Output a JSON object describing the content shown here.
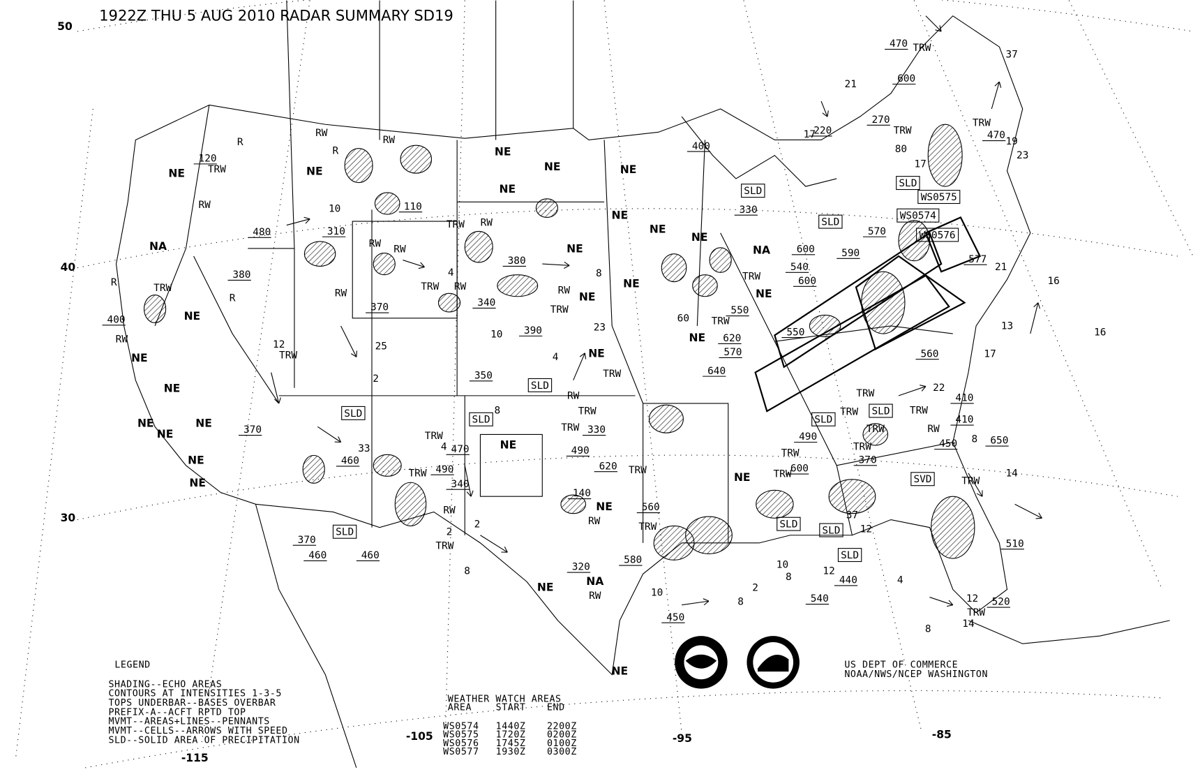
{
  "title": "1922Z THU  5 AUG 2010 RADAR SUMMARY SD19",
  "latitude_labels": [
    "50",
    "40",
    "30"
  ],
  "longitude_labels": [
    "-115",
    "-105",
    "-95",
    "-85"
  ],
  "legend": {
    "heading": "LEGEND",
    "lines": [
      "SHADING--ECHO AREAS",
      "CONTOURS AT INTENSITIES 1-3-5",
      "TOPS UNDERBAR--BASES OVERBAR",
      "PREFIX-A--ACFT RPTD TOP",
      "MVMT--AREAS+LINES--PENNANTS",
      "MVMT--CELLS--ARROWS WITH SPEED",
      "SLD--SOLID AREA OF PRECIPITATION"
    ]
  },
  "watch_areas": {
    "heading": "WEATHER WATCH AREAS",
    "columns": [
      "AREA",
      "START",
      "END"
    ],
    "rows": [
      [
        "WS0574",
        "1440Z",
        "2200Z"
      ],
      [
        "WS0575",
        "1720Z",
        "0200Z"
      ],
      [
        "WS0576",
        "1745Z",
        "0100Z"
      ],
      [
        "WS0577",
        "1930Z",
        "0300Z"
      ]
    ]
  },
  "credit": {
    "line1": "US DEPT OF COMMERCE",
    "line2": "NOAA/NWS/NCEP WASHINGTON"
  },
  "logos": [
    "NOAA",
    "NATIONAL WEATHER SERVICE"
  ],
  "map_labels": [
    "NE",
    "120",
    "TRW",
    "RW",
    "R",
    "NA",
    "480",
    "380",
    "R",
    "TRW",
    "R",
    "400",
    "RW",
    "NE",
    "NE",
    "12",
    "TRW",
    "NE",
    "NE",
    "NE",
    "NE",
    "370",
    "NE",
    "NE",
    "370",
    "460",
    "SLD",
    "SLD",
    "33",
    "460",
    "25",
    "2",
    "370",
    "RW",
    "RW",
    "310",
    "10",
    "RW",
    "R",
    "RW",
    "110",
    "NE",
    "RW",
    "NE",
    "NE",
    "NE",
    "TRW",
    "RW",
    "4",
    "TRW",
    "RW",
    "340",
    "380",
    "RW",
    "TRW",
    "NE",
    "NE",
    "8",
    "NE",
    "NE",
    "NE",
    "NE",
    "10",
    "390",
    "4",
    "NE",
    "23",
    "350",
    "SLD",
    "SLD",
    "8",
    "4",
    "470",
    "TRW",
    "TRW",
    "490",
    "340",
    "NE",
    "RW",
    "2",
    "2",
    "TRW",
    "8",
    "460",
    "490",
    "TRW",
    "330",
    "TRW",
    "TRW",
    "RW",
    "620",
    "TRW",
    "140",
    "NE",
    "RW",
    "560",
    "TRW",
    "580",
    "320",
    "NA",
    "NE",
    "RW",
    "10",
    "450",
    "NE",
    "2",
    "8",
    "10",
    "8",
    "540",
    "440",
    "SLD",
    "12",
    "SLD",
    "37",
    "12",
    "SLD",
    "4",
    "8",
    "14",
    "12",
    "520",
    "TRW",
    "510",
    "14",
    "TRW",
    "8",
    "650",
    "450",
    "SVD",
    "410",
    "410",
    "22",
    "17",
    "13",
    "16",
    "21",
    "577",
    "WS0576",
    "470",
    "TRW",
    "37",
    "21",
    "600",
    "270",
    "220",
    "17",
    "TRW",
    "80",
    "17",
    "19",
    "23",
    "TRW",
    "470",
    "NE",
    "NA",
    "NE",
    "600",
    "540",
    "600",
    "TRW",
    "550",
    "620",
    "570",
    "640",
    "60",
    "TRW",
    "NE",
    "550",
    "560",
    "590",
    "570",
    "SLD",
    "SLD",
    "330",
    "SLD",
    "WS0575",
    "WS0574",
    "400",
    "TRW",
    "490",
    "600",
    "SLD",
    "TRW",
    "TRW",
    "SLD",
    "TRW",
    "370",
    "NE",
    "TRW",
    "TRW",
    "TRW",
    "RW",
    "16"
  ],
  "icons": [
    "noaa-logo",
    "nws-logo",
    "movement-arrow"
  ]
}
